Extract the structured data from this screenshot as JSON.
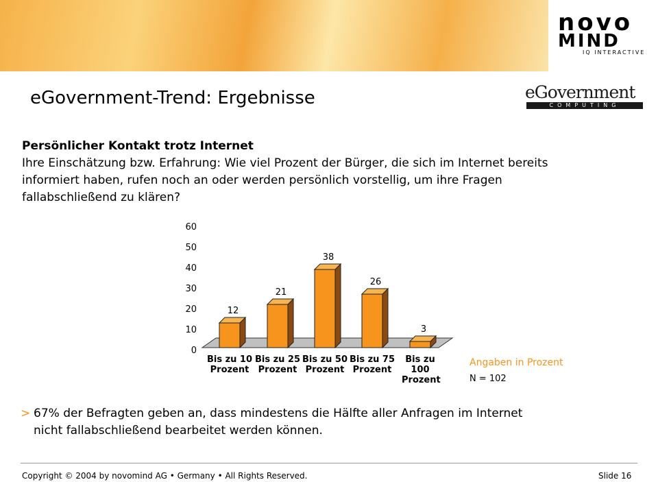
{
  "header": {
    "logo_top": "novo",
    "logo_bottom": "MIND",
    "logo_tagline": "IQ INTERACTIVE",
    "title": "eGovernment-Trend: Ergebnisse",
    "partner_logo": "eGovernment",
    "partner_sub": "COMPUTING"
  },
  "question": {
    "heading": "Persönlicher Kontakt trotz Internet",
    "lines": [
      "Ihre Einschätzung bzw. Erfahrung: Wie viel Prozent der Bürger, die sich im Internet bereits",
      "informiert haben, rufen noch an oder werden persönlich vorstellig, um ihre Fragen",
      "fallabschließend zu klären?"
    ]
  },
  "chart_data": {
    "type": "bar",
    "categories": [
      "Bis zu 10 Prozent",
      "Bis zu 25 Prozent",
      "Bis zu 50 Prozent",
      "Bis zu 75 Prozent",
      "Bis zu 100 Prozent"
    ],
    "values": [
      12,
      21,
      38,
      26,
      3
    ],
    "color": "#f7941d",
    "ylim": [
      0,
      60
    ],
    "yticks": [
      0,
      10,
      20,
      30,
      40,
      50,
      60
    ],
    "annotations": [
      "Angaben in Prozent",
      "N = 102"
    ]
  },
  "conclusion": {
    "marker": ">",
    "lines": [
      "67% der Befragten geben an, dass mindestens die Hälfte aller Anfragen im Internet",
      "nicht fallabschließend bearbeitet werden können."
    ]
  },
  "footer": {
    "copyright": "Copyright © 2004 by novomind AG • Germany • All Rights Reserved.",
    "slide": "Slide 16"
  }
}
